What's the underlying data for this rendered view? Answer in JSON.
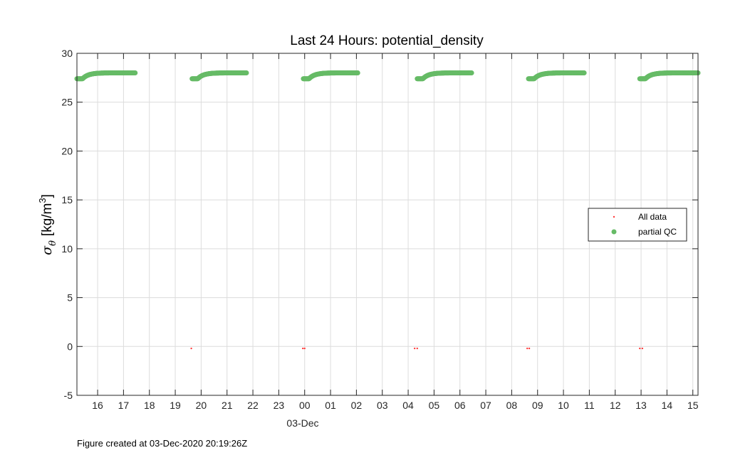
{
  "chart_data": {
    "type": "scatter",
    "title": "Last 24 Hours: potential_density",
    "ylabel_symbol": "σ",
    "ylabel_subscript": "θ",
    "ylabel_units": "[kg/m",
    "ylabel_superscript": "3",
    "ylabel_close": "]",
    "ylim": [
      -5,
      30
    ],
    "yticks": [
      -5,
      0,
      5,
      10,
      15,
      20,
      25,
      30
    ],
    "xlim": [
      15.2,
      39.2
    ],
    "xticks": [
      16,
      17,
      18,
      19,
      20,
      21,
      22,
      23,
      24,
      25,
      26,
      27,
      28,
      29,
      30,
      31,
      32,
      33,
      34,
      35,
      36,
      37,
      38,
      39
    ],
    "xticklabels": [
      "16",
      "17",
      "18",
      "19",
      "20",
      "21",
      "22",
      "23",
      "00",
      "01",
      "02",
      "03",
      "04",
      "05",
      "06",
      "07",
      "08",
      "09",
      "10",
      "11",
      "12",
      "13",
      "14",
      "15"
    ],
    "date_label": "03-Dec",
    "grid": true,
    "legend_position": "right",
    "series": [
      {
        "name": "All data",
        "marker": "point",
        "color": "#ff3b3b",
        "points": [
          [
            19.62,
            -0.2
          ],
          [
            23.93,
            -0.2
          ],
          [
            24.0,
            -0.2
          ],
          [
            28.25,
            -0.2
          ],
          [
            28.35,
            -0.2
          ],
          [
            32.6,
            -0.2
          ],
          [
            32.68,
            -0.2
          ],
          [
            36.95,
            -0.2
          ],
          [
            37.05,
            -0.2
          ]
        ]
      },
      {
        "name": "partial QC",
        "marker": "circle",
        "color": "#66bb66",
        "segments": [
          {
            "x_start": 15.2,
            "x_end": 17.45
          },
          {
            "x_start": 19.65,
            "x_end": 21.75
          },
          {
            "x_start": 23.95,
            "x_end": 26.05
          },
          {
            "x_start": 28.35,
            "x_end": 30.45
          },
          {
            "x_start": 32.65,
            "x_end": 34.8
          },
          {
            "x_start": 36.95,
            "x_end": 39.2
          }
        ],
        "y_low": 27.4,
        "y_high": 28.0
      }
    ]
  },
  "footer": "Figure created at 03-Dec-2020 20:19:26Z"
}
